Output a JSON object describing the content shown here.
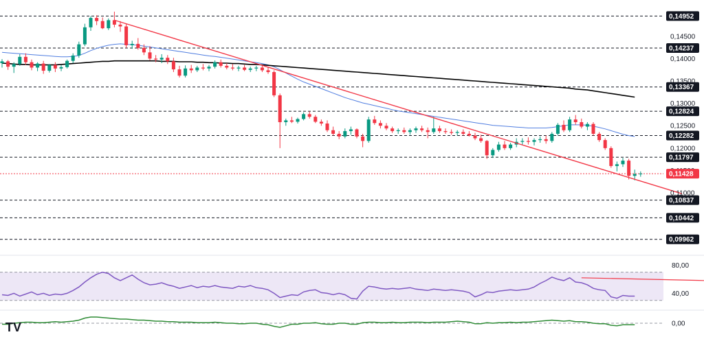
{
  "chart_data": [
    {
      "type": "candlestick",
      "ylim": [
        0.0985,
        0.1505
      ],
      "axis_ticks": [
        "0,14500",
        "0,14000",
        "0,13500",
        "0,13000",
        "0,12500",
        "0,12000",
        "0,11500",
        "0,11000"
      ],
      "axis_tick_values": [
        0.145,
        0.14,
        0.135,
        0.13,
        0.125,
        0.12,
        0.115,
        0.11
      ],
      "level_labels": [
        "0,14952",
        "0,14237",
        "0,13367",
        "0,12824",
        "0,12282",
        "0,11797",
        "0,10837",
        "0,10442",
        "0,09962"
      ],
      "level_values": [
        0.14952,
        0.14237,
        0.13367,
        0.12824,
        0.12282,
        0.11797,
        0.10837,
        0.10442,
        0.09962
      ],
      "current_price_label": "0,11428",
      "current_price": 0.11428,
      "candles": [
        [
          0.139,
          0.1399,
          0.138,
          0.1394
        ],
        [
          0.1394,
          0.1397,
          0.1375,
          0.1382
        ],
        [
          0.1382,
          0.1392,
          0.1368,
          0.1388
        ],
        [
          0.1388,
          0.141,
          0.1384,
          0.1404
        ],
        [
          0.1404,
          0.1412,
          0.1386,
          0.1392
        ],
        [
          0.1392,
          0.1398,
          0.1374,
          0.138
        ],
        [
          0.138,
          0.1392,
          0.1372,
          0.1389
        ],
        [
          0.1389,
          0.1395,
          0.1366,
          0.1373
        ],
        [
          0.1373,
          0.1388,
          0.1369,
          0.1386
        ],
        [
          0.1386,
          0.1392,
          0.137,
          0.1378
        ],
        [
          0.1378,
          0.1386,
          0.1372,
          0.1381
        ],
        [
          0.1381,
          0.1398,
          0.1378,
          0.1395
        ],
        [
          0.1395,
          0.1412,
          0.139,
          0.1407
        ],
        [
          0.1407,
          0.1438,
          0.1402,
          0.1432
        ],
        [
          0.1432,
          0.1478,
          0.1428,
          0.147
        ],
        [
          0.147,
          0.1495,
          0.1462,
          0.1491
        ],
        [
          0.1491,
          0.1497,
          0.1475,
          0.1484
        ],
        [
          0.1484,
          0.1492,
          0.1466,
          0.1468
        ],
        [
          0.1468,
          0.149,
          0.1464,
          0.1486
        ],
        [
          0.1486,
          0.1505,
          0.147,
          0.1476
        ],
        [
          0.1476,
          0.1484,
          0.146,
          0.1472
        ],
        [
          0.1472,
          0.1478,
          0.1424,
          0.143
        ],
        [
          0.143,
          0.144,
          0.1422,
          0.1433
        ],
        [
          0.1433,
          0.1446,
          0.142,
          0.1424
        ],
        [
          0.1424,
          0.1432,
          0.1408,
          0.1414
        ],
        [
          0.1414,
          0.1428,
          0.1396,
          0.14
        ],
        [
          0.14,
          0.1408,
          0.1392,
          0.1398
        ],
        [
          0.1398,
          0.141,
          0.139,
          0.1402
        ],
        [
          0.1402,
          0.1408,
          0.1388,
          0.1394
        ],
        [
          0.1394,
          0.1402,
          0.137,
          0.1376
        ],
        [
          0.1376,
          0.1384,
          0.1358,
          0.1362
        ],
        [
          0.1362,
          0.1385,
          0.1358,
          0.1378
        ],
        [
          0.1378,
          0.1386,
          0.1368,
          0.1374
        ],
        [
          0.1374,
          0.1384,
          0.137,
          0.138
        ],
        [
          0.138,
          0.1388,
          0.1374,
          0.1378
        ],
        [
          0.1378,
          0.1386,
          0.1372,
          0.1382
        ],
        [
          0.1382,
          0.1396,
          0.1378,
          0.1392
        ],
        [
          0.1392,
          0.1398,
          0.138,
          0.1384
        ],
        [
          0.1384,
          0.139,
          0.1376,
          0.138
        ],
        [
          0.138,
          0.1388,
          0.1374,
          0.1378
        ],
        [
          0.1378,
          0.1384,
          0.1372,
          0.138
        ],
        [
          0.138,
          0.1386,
          0.1372,
          0.1375
        ],
        [
          0.1375,
          0.1382,
          0.137,
          0.1378
        ],
        [
          0.1378,
          0.1384,
          0.1372,
          0.138
        ],
        [
          0.138,
          0.1386,
          0.137,
          0.1374
        ],
        [
          0.1374,
          0.138,
          0.1366,
          0.137
        ],
        [
          0.137,
          0.1374,
          0.1314,
          0.1318
        ],
        [
          0.1318,
          0.1322,
          0.12,
          0.1258
        ],
        [
          0.1258,
          0.1266,
          0.125,
          0.1262
        ],
        [
          0.1262,
          0.127,
          0.1256,
          0.1259
        ],
        [
          0.1259,
          0.1268,
          0.1255,
          0.1265
        ],
        [
          0.1265,
          0.128,
          0.1262,
          0.1276
        ],
        [
          0.1276,
          0.1282,
          0.1266,
          0.127
        ],
        [
          0.127,
          0.1274,
          0.1256,
          0.1259
        ],
        [
          0.1259,
          0.1264,
          0.125,
          0.1255
        ],
        [
          0.1255,
          0.1262,
          0.1236,
          0.124
        ],
        [
          0.124,
          0.1248,
          0.1228,
          0.1232
        ],
        [
          0.1232,
          0.1238,
          0.122,
          0.1226
        ],
        [
          0.1226,
          0.1244,
          0.1222,
          0.1238
        ],
        [
          0.1238,
          0.1248,
          0.123,
          0.1242
        ],
        [
          0.1242,
          0.1244,
          0.1222,
          0.1226
        ],
        [
          0.1226,
          0.1232,
          0.1202,
          0.1216
        ],
        [
          0.1216,
          0.127,
          0.1212,
          0.1264
        ],
        [
          0.1264,
          0.1272,
          0.1252,
          0.1256
        ],
        [
          0.1256,
          0.1262,
          0.1244,
          0.125
        ],
        [
          0.125,
          0.1256,
          0.124,
          0.1244
        ],
        [
          0.1244,
          0.1248,
          0.1234,
          0.1238
        ],
        [
          0.1238,
          0.1244,
          0.1232,
          0.124
        ],
        [
          0.124,
          0.1246,
          0.1232,
          0.1236
        ],
        [
          0.1236,
          0.1244,
          0.123,
          0.124
        ],
        [
          0.124,
          0.1248,
          0.1234,
          0.1244
        ],
        [
          0.1244,
          0.125,
          0.1236,
          0.124
        ],
        [
          0.124,
          0.1246,
          0.1222,
          0.1236
        ],
        [
          0.1236,
          0.127,
          0.1232,
          0.1244
        ],
        [
          0.1244,
          0.125,
          0.1234,
          0.1238
        ],
        [
          0.1238,
          0.1244,
          0.1232,
          0.1236
        ],
        [
          0.1236,
          0.1242,
          0.123,
          0.1234
        ],
        [
          0.1234,
          0.124,
          0.1228,
          0.1236
        ],
        [
          0.1236,
          0.1242,
          0.1228,
          0.1232
        ],
        [
          0.1232,
          0.1238,
          0.1226,
          0.1228
        ],
        [
          0.1228,
          0.1234,
          0.1218,
          0.1222
        ],
        [
          0.1222,
          0.123,
          0.1212,
          0.1216
        ],
        [
          0.1216,
          0.1218,
          0.1176,
          0.1184
        ],
        [
          0.1184,
          0.12,
          0.1178,
          0.1196
        ],
        [
          0.1196,
          0.1214,
          0.1192,
          0.1208
        ],
        [
          0.1208,
          0.1216,
          0.1196,
          0.12
        ],
        [
          0.12,
          0.1212,
          0.1196,
          0.1208
        ],
        [
          0.1208,
          0.1222,
          0.1202,
          0.1214
        ],
        [
          0.1214,
          0.1222,
          0.1208,
          0.1216
        ],
        [
          0.1216,
          0.1224,
          0.1208,
          0.1214
        ],
        [
          0.1214,
          0.1222,
          0.1206,
          0.1218
        ],
        [
          0.1218,
          0.1226,
          0.1212,
          0.122
        ],
        [
          0.122,
          0.1228,
          0.121,
          0.1216
        ],
        [
          0.1216,
          0.1236,
          0.1212,
          0.1232
        ],
        [
          0.1232,
          0.1256,
          0.1228,
          0.1252
        ],
        [
          0.1252,
          0.1262,
          0.1236,
          0.124
        ],
        [
          0.124,
          0.127,
          0.1236,
          0.1264
        ],
        [
          0.1264,
          0.1274,
          0.1252,
          0.1258
        ],
        [
          0.1258,
          0.1266,
          0.1244,
          0.1248
        ],
        [
          0.1248,
          0.1258,
          0.124,
          0.1254
        ],
        [
          0.1254,
          0.1258,
          0.1228,
          0.1232
        ],
        [
          0.1232,
          0.1236,
          0.1214,
          0.1218
        ],
        [
          0.1218,
          0.1222,
          0.1196,
          0.12
        ],
        [
          0.12,
          0.1204,
          0.1156,
          0.116
        ],
        [
          0.116,
          0.117,
          0.1148,
          0.1164
        ],
        [
          0.1164,
          0.1178,
          0.1158,
          0.1172
        ],
        [
          0.1172,
          0.1176,
          0.113,
          0.1138
        ],
        [
          0.1138,
          0.1152,
          0.1128,
          0.1142
        ],
        [
          0.1142,
          0.1148,
          0.1136,
          0.1143
        ]
      ],
      "ma_fast": [
        0.1414,
        0.1413,
        0.1412,
        0.1411,
        0.141,
        0.1409,
        0.1408,
        0.1407,
        0.1406,
        0.1405,
        0.1404,
        0.1404,
        0.1405,
        0.1407,
        0.1412,
        0.1418,
        0.1423,
        0.1427,
        0.143,
        0.1432,
        0.1433,
        0.1432,
        0.1431,
        0.143,
        0.1428,
        0.1426,
        0.1424,
        0.1422,
        0.142,
        0.1418,
        0.1416,
        0.1414,
        0.1412,
        0.141,
        0.1408,
        0.1406,
        0.1405,
        0.1403,
        0.1401,
        0.1399,
        0.1397,
        0.1395,
        0.1393,
        0.1391,
        0.1389,
        0.1386,
        0.1382,
        0.1375,
        0.1368,
        0.1361,
        0.1354,
        0.1348,
        0.1343,
        0.1338,
        0.1333,
        0.1328,
        0.1323,
        0.1318,
        0.1313,
        0.1309,
        0.1305,
        0.1301,
        0.1298,
        0.1295,
        0.1292,
        0.1289,
        0.1286,
        0.1283,
        0.1281,
        0.1279,
        0.1277,
        0.1275,
        0.1273,
        0.1271,
        0.1269,
        0.1267,
        0.1265,
        0.1263,
        0.1261,
        0.1259,
        0.1257,
        0.1255,
        0.1253,
        0.1251,
        0.125,
        0.1249,
        0.1248,
        0.1247,
        0.1246,
        0.1245,
        0.1245,
        0.1245,
        0.1245,
        0.1246,
        0.1248,
        0.125,
        0.1252,
        0.1252,
        0.1252,
        0.1251,
        0.1249,
        0.1246,
        0.1243,
        0.1239,
        0.1235,
        0.1231,
        0.1228,
        0.1226
      ],
      "ma_slow": [
        0.139,
        0.1389,
        0.1388,
        0.1387,
        0.1387,
        0.1386,
        0.1386,
        0.1386,
        0.1386,
        0.1386,
        0.1387,
        0.1388,
        0.1389,
        0.139,
        0.1391,
        0.1392,
        0.1393,
        0.1394,
        0.1394,
        0.1395,
        0.1395,
        0.1395,
        0.1395,
        0.1395,
        0.1395,
        0.1395,
        0.1395,
        0.1394,
        0.1394,
        0.1394,
        0.1393,
        0.1393,
        0.1393,
        0.1392,
        0.1392,
        0.1391,
        0.1391,
        0.139,
        0.139,
        0.1389,
        0.1389,
        0.1388,
        0.1387,
        0.1387,
        0.1386,
        0.1385,
        0.1384,
        0.1383,
        0.1382,
        0.1381,
        0.138,
        0.1379,
        0.1378,
        0.1377,
        0.1376,
        0.1375,
        0.1374,
        0.1373,
        0.1372,
        0.1371,
        0.137,
        0.1369,
        0.1368,
        0.1367,
        0.1366,
        0.1365,
        0.1364,
        0.1363,
        0.1362,
        0.1361,
        0.136,
        0.1359,
        0.1358,
        0.1357,
        0.1356,
        0.1355,
        0.1354,
        0.1353,
        0.1352,
        0.1351,
        0.135,
        0.1349,
        0.1348,
        0.1347,
        0.1346,
        0.1345,
        0.1344,
        0.1343,
        0.1342,
        0.1341,
        0.134,
        0.1339,
        0.1338,
        0.1337,
        0.1336,
        0.1335,
        0.1334,
        0.1332,
        0.1331,
        0.133,
        0.1328,
        0.1326,
        0.1324,
        0.1322,
        0.132,
        0.1318,
        0.1316,
        0.1314
      ],
      "trendline": [
        [
          0.1486,
          19
        ],
        [
          0.1098,
          115
        ]
      ],
      "colors": {
        "up": "#089981",
        "down": "#f23645",
        "ma_fast": "#4f7de0",
        "ma_slow": "#000000",
        "trend": "#f23645"
      }
    },
    {
      "type": "line",
      "name": "RSI",
      "axis_ticks": [
        "80,00",
        "40,00"
      ],
      "axis_tick_values": [
        80,
        40
      ],
      "band": [
        30,
        70
      ],
      "ylim": [
        20,
        90
      ],
      "values": [
        38,
        37,
        40,
        36,
        39,
        42,
        38,
        40,
        37,
        39,
        38,
        40,
        44,
        49,
        56,
        62,
        67,
        70,
        68,
        62,
        58,
        62,
        66,
        60,
        55,
        52,
        53,
        55,
        52,
        50,
        47,
        49,
        51,
        48,
        50,
        49,
        51,
        49,
        48,
        47,
        50,
        49,
        51,
        48,
        47,
        45,
        40,
        34,
        36,
        38,
        37,
        42,
        44,
        45,
        41,
        40,
        38,
        40,
        38,
        33,
        32,
        43,
        50,
        49,
        47,
        46,
        47,
        46,
        47,
        48,
        46,
        45,
        44,
        46,
        45,
        44,
        45,
        44,
        43,
        41,
        35,
        38,
        42,
        41,
        43,
        44,
        45,
        44,
        45,
        46,
        49,
        54,
        58,
        63,
        60,
        58,
        62,
        56,
        55,
        52,
        47,
        45,
        44,
        35,
        33,
        37,
        36,
        36
      ],
      "trend": [
        [
          62,
          98
        ],
        [
          56,
          130
        ]
      ],
      "colors": {
        "line": "#7e57c2",
        "band": "#ede7f6",
        "trend": "#f23645"
      }
    },
    {
      "type": "line",
      "name": "Momentum",
      "axis_ticks": [
        "0,00"
      ],
      "axis_tick_values": [
        0
      ],
      "ylim": [
        -1,
        1
      ],
      "values": [
        -0.1,
        -0.1,
        0,
        0.05,
        0.1,
        0.1,
        0.05,
        0.05,
        0.1,
        0.15,
        0.1,
        0.15,
        0.2,
        0.3,
        0.5,
        0.6,
        0.6,
        0.55,
        0.5,
        0.45,
        0.4,
        0.4,
        0.35,
        0.3,
        0.3,
        0.25,
        0.2,
        0.2,
        0.15,
        0.15,
        0.1,
        0.1,
        0.1,
        0.05,
        0.05,
        0.05,
        0.1,
        0.05,
        0,
        0,
        -0.05,
        -0.05,
        0,
        0,
        -0.1,
        -0.15,
        -0.3,
        -0.4,
        -0.25,
        -0.1,
        -0.1,
        0,
        0,
        0.05,
        -0.05,
        -0.1,
        -0.1,
        0,
        0,
        -0.1,
        -0.1,
        0.05,
        0.1,
        0.1,
        0.05,
        0.05,
        0.1,
        0.05,
        0.05,
        0.1,
        0.1,
        0.1,
        0.05,
        0.1,
        0.1,
        0.1,
        0.15,
        0.2,
        0.15,
        0.1,
        -0.05,
        -0.05,
        0.05,
        0,
        0.05,
        0.05,
        0.1,
        0.05,
        0.1,
        0.1,
        0.15,
        0.2,
        0.25,
        0.3,
        0.25,
        0.2,
        0.25,
        0.15,
        0.15,
        0.1,
        0,
        -0.05,
        -0.05,
        -0.2,
        -0.25,
        -0.15,
        -0.15,
        -0.15
      ],
      "colors": {
        "line": "#2e8b35"
      }
    }
  ],
  "brand": {
    "logo_text": "TV"
  }
}
